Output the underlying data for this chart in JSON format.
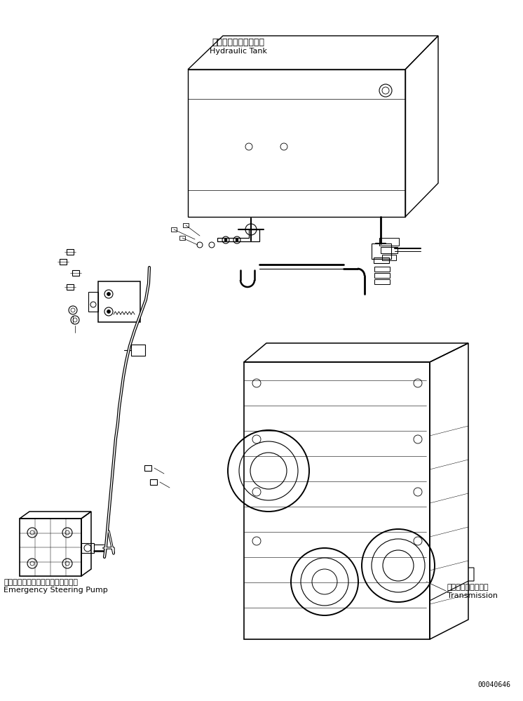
{
  "bg_color": "#ffffff",
  "line_color": "#000000",
  "fig_width": 7.46,
  "fig_height": 9.99,
  "dpi": 100,
  "hydraulic_tank_label_jp": "ハイドロリックタンク",
  "hydraulic_tank_label_en": "Hydraulic Tank",
  "emergency_pump_label_jp": "エマージェンシステアリングポンプ",
  "emergency_pump_label_en": "Emergency Steering Pump",
  "transmission_label_jp": "トランスミッション",
  "transmission_label_en": "Transmission",
  "part_number": "00040646",
  "font_size_label": 8,
  "font_size_part": 7
}
